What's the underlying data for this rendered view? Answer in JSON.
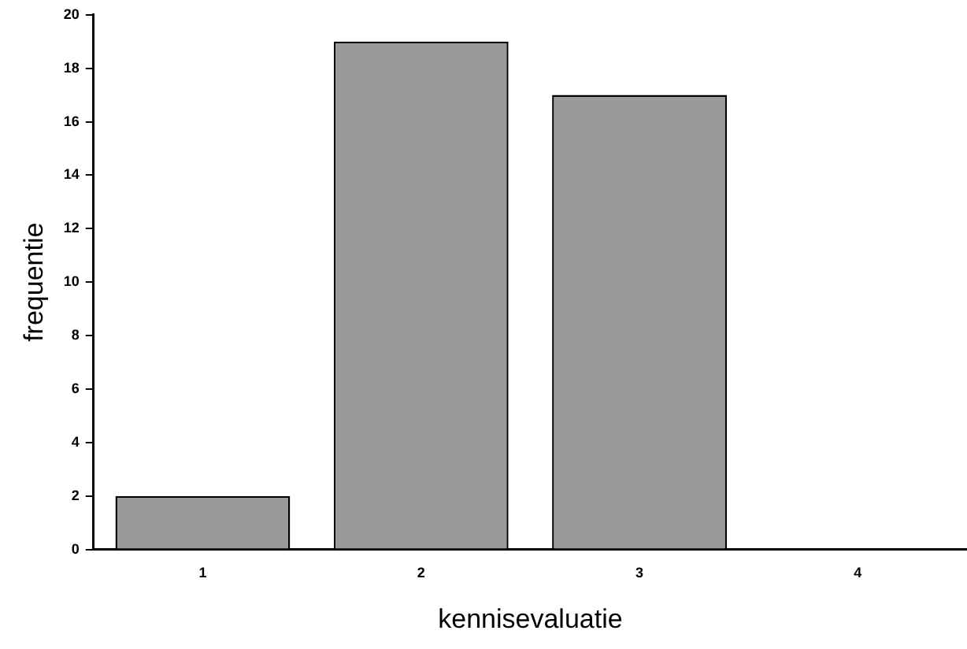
{
  "chart_data": {
    "type": "bar",
    "xlabel": "kennisevaluatie",
    "ylabel": "frequentie",
    "categories": [
      "1",
      "2",
      "3",
      "4"
    ],
    "values": [
      2,
      19,
      17,
      0
    ],
    "color": "#9a9a9a",
    "ylim": [
      0,
      20
    ],
    "yticks": [
      0,
      2,
      4,
      6,
      8,
      10,
      12,
      14,
      16,
      18,
      20
    ],
    "grid": false,
    "legend": false
  }
}
